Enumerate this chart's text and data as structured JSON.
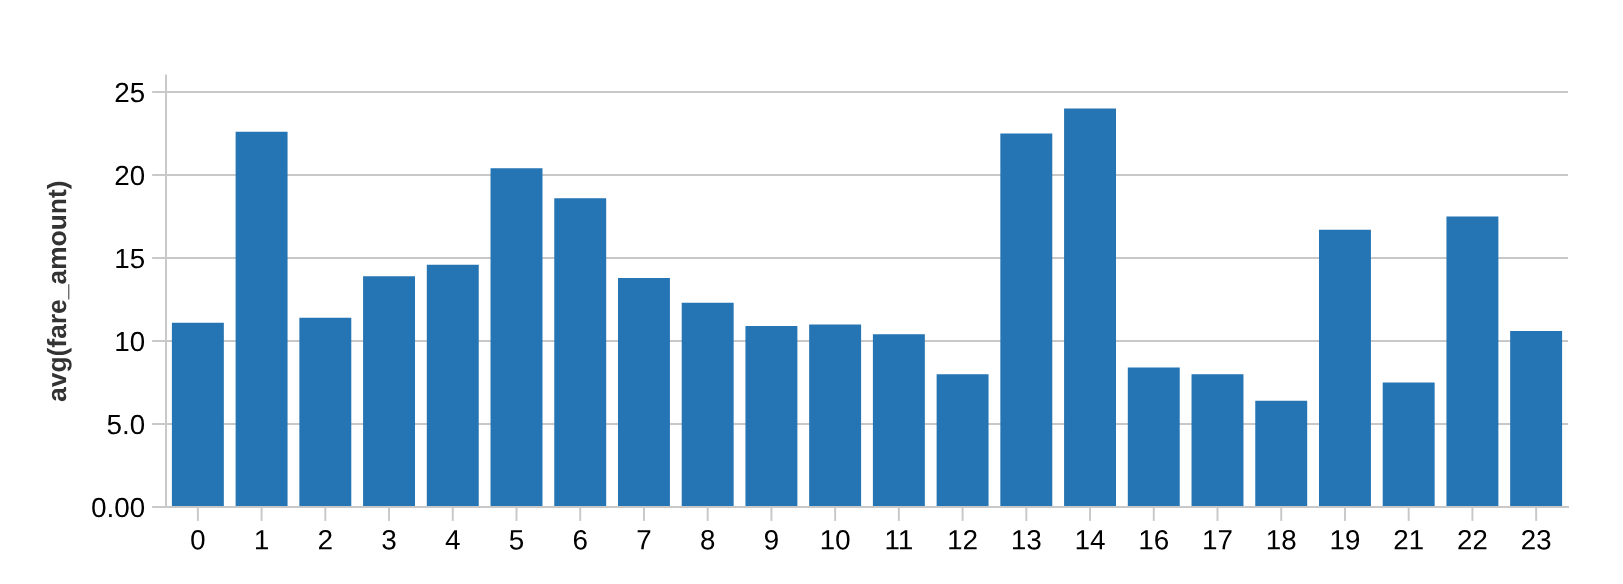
{
  "chart_data": {
    "type": "bar",
    "ylabel": "avg(fare_amount)",
    "categories": [
      "0",
      "1",
      "2",
      "3",
      "4",
      "5",
      "6",
      "7",
      "8",
      "9",
      "10",
      "11",
      "12",
      "13",
      "14",
      "16",
      "17",
      "18",
      "19",
      "21",
      "22",
      "23"
    ],
    "values": [
      11.1,
      22.6,
      11.4,
      13.9,
      14.6,
      20.4,
      18.6,
      13.8,
      12.3,
      10.9,
      11.0,
      10.4,
      8.0,
      22.5,
      24.0,
      8.4,
      8.0,
      6.4,
      16.7,
      7.5,
      17.5,
      10.6
    ],
    "color": "#2574b3",
    "ylim": [
      0,
      26
    ],
    "yticks": [
      {
        "value": 0,
        "label": "0.00"
      },
      {
        "value": 5,
        "label": "5.0"
      },
      10,
      15,
      20,
      25
    ],
    "grid": "y",
    "legend": false
  }
}
